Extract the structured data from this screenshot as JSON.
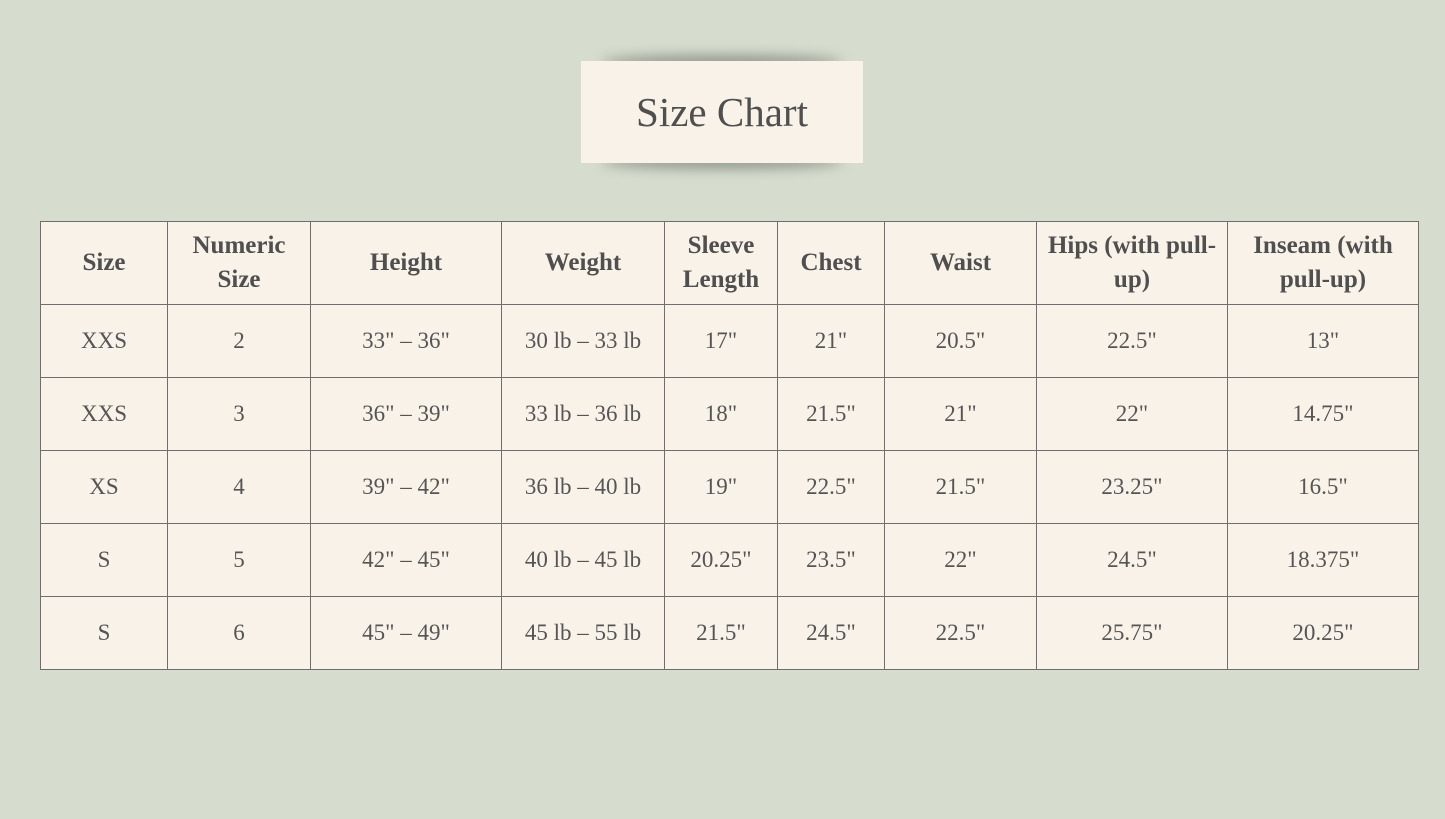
{
  "title": "Size Chart",
  "colors": {
    "background": "#d6ddcf",
    "panel": "#f8f2e8",
    "text": "#505050",
    "border": "#6e6e6e"
  },
  "table": {
    "headers": [
      "Size",
      "Numeric Size",
      "Height",
      "Weight",
      "Sleeve Length",
      "Chest",
      "Waist",
      "Hips (with pull-up)",
      "Inseam (with pull-up)"
    ],
    "rows": [
      [
        "XXS",
        "2",
        "33\" – 36\"",
        "30 lb – 33 lb",
        "17\"",
        "21\"",
        "20.5\"",
        "22.5\"",
        "13\""
      ],
      [
        "XXS",
        "3",
        "36\" – 39\"",
        "33 lb – 36 lb",
        "18\"",
        "21.5\"",
        "21\"",
        "22\"",
        "14.75\""
      ],
      [
        "XS",
        "4",
        "39\" – 42\"",
        "36 lb – 40 lb",
        "19\"",
        "22.5\"",
        "21.5\"",
        "23.25\"",
        "16.5\""
      ],
      [
        "S",
        "5",
        "42\" – 45\"",
        "40 lb – 45 lb",
        "20.25\"",
        "23.5\"",
        "22\"",
        "24.5\"",
        "18.375\""
      ],
      [
        "S",
        "6",
        "45\" – 49\"",
        "45 lb – 55 lb",
        "21.5\"",
        "24.5\"",
        "22.5\"",
        "25.75\"",
        "20.25\""
      ]
    ]
  }
}
